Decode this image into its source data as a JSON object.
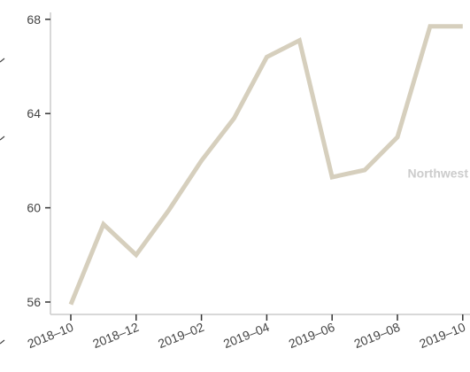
{
  "chart_data": {
    "type": "line",
    "x": [
      "2018-10",
      "2018-11",
      "2018-12",
      "2019-01",
      "2019-02",
      "2019-03",
      "2019-04",
      "2019-05",
      "2019-06",
      "2019-07",
      "2019-08",
      "2019-09",
      "2019-10"
    ],
    "series": [
      {
        "name": "Northwest",
        "values": [
          55.9,
          59.3,
          58.0,
          59.9,
          62.0,
          63.8,
          66.4,
          67.1,
          61.3,
          61.6,
          63.0,
          67.7,
          67.7
        ],
        "color": "#d6cfbd"
      }
    ],
    "xticks": [
      "2018–10",
      "2018–12",
      "2019–02",
      "2019–04",
      "2019–06",
      "2019–08",
      "2019–10"
    ],
    "yticks": [
      56,
      60,
      64,
      68
    ],
    "ylim": [
      55.6,
      68.0
    ],
    "title": "",
    "xlabel": "",
    "ylabel": "",
    "grid": false,
    "legend": "direct label at right end of line"
  }
}
